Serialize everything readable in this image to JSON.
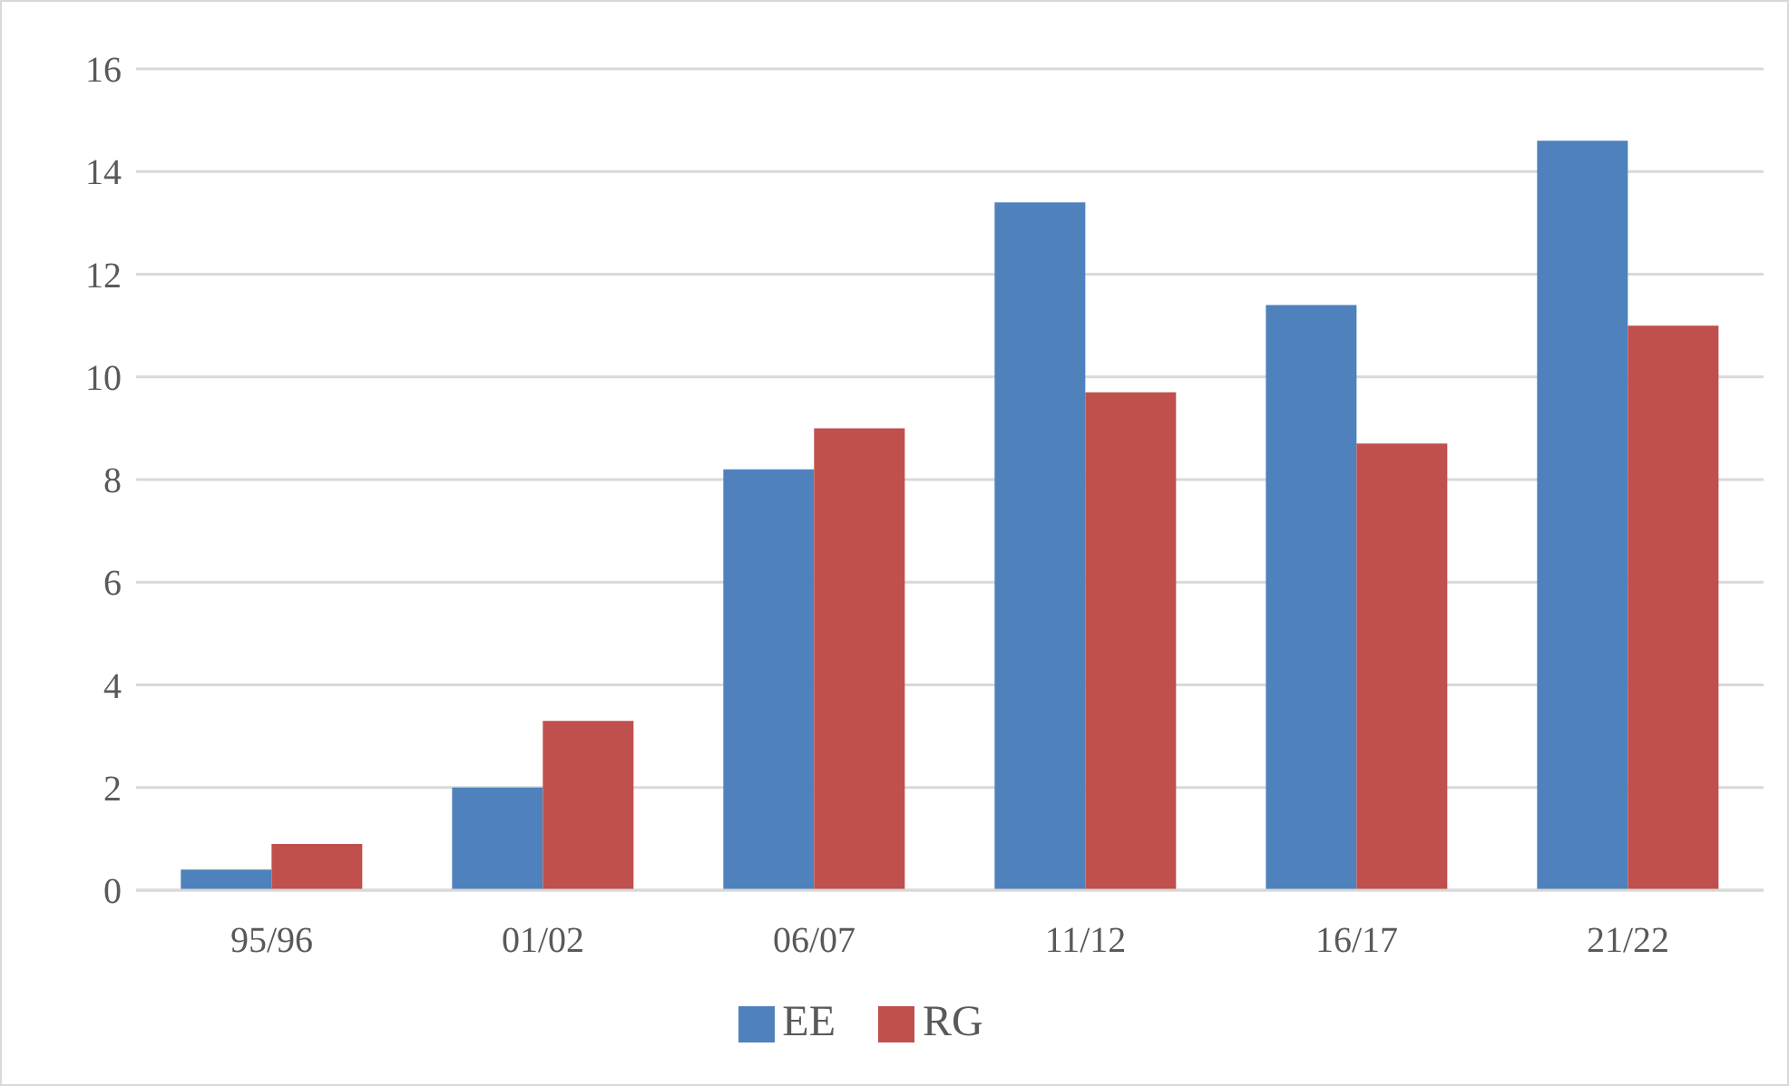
{
  "chart_data": {
    "type": "bar",
    "categories": [
      "95/96",
      "01/02",
      "06/07",
      "11/12",
      "16/17",
      "21/22"
    ],
    "series": [
      {
        "name": "EE",
        "color": "#4f81bd",
        "values": [
          0.4,
          2.0,
          8.2,
          13.4,
          11.4,
          14.6
        ]
      },
      {
        "name": "RG",
        "color": "#c0504d",
        "values": [
          0.9,
          3.3,
          9.0,
          9.7,
          8.7,
          11.0
        ]
      }
    ],
    "ylim": [
      0,
      16
    ],
    "yticks": [
      0,
      2,
      4,
      6,
      8,
      10,
      12,
      14,
      16
    ],
    "grid": "y",
    "legend": "bottom"
  }
}
